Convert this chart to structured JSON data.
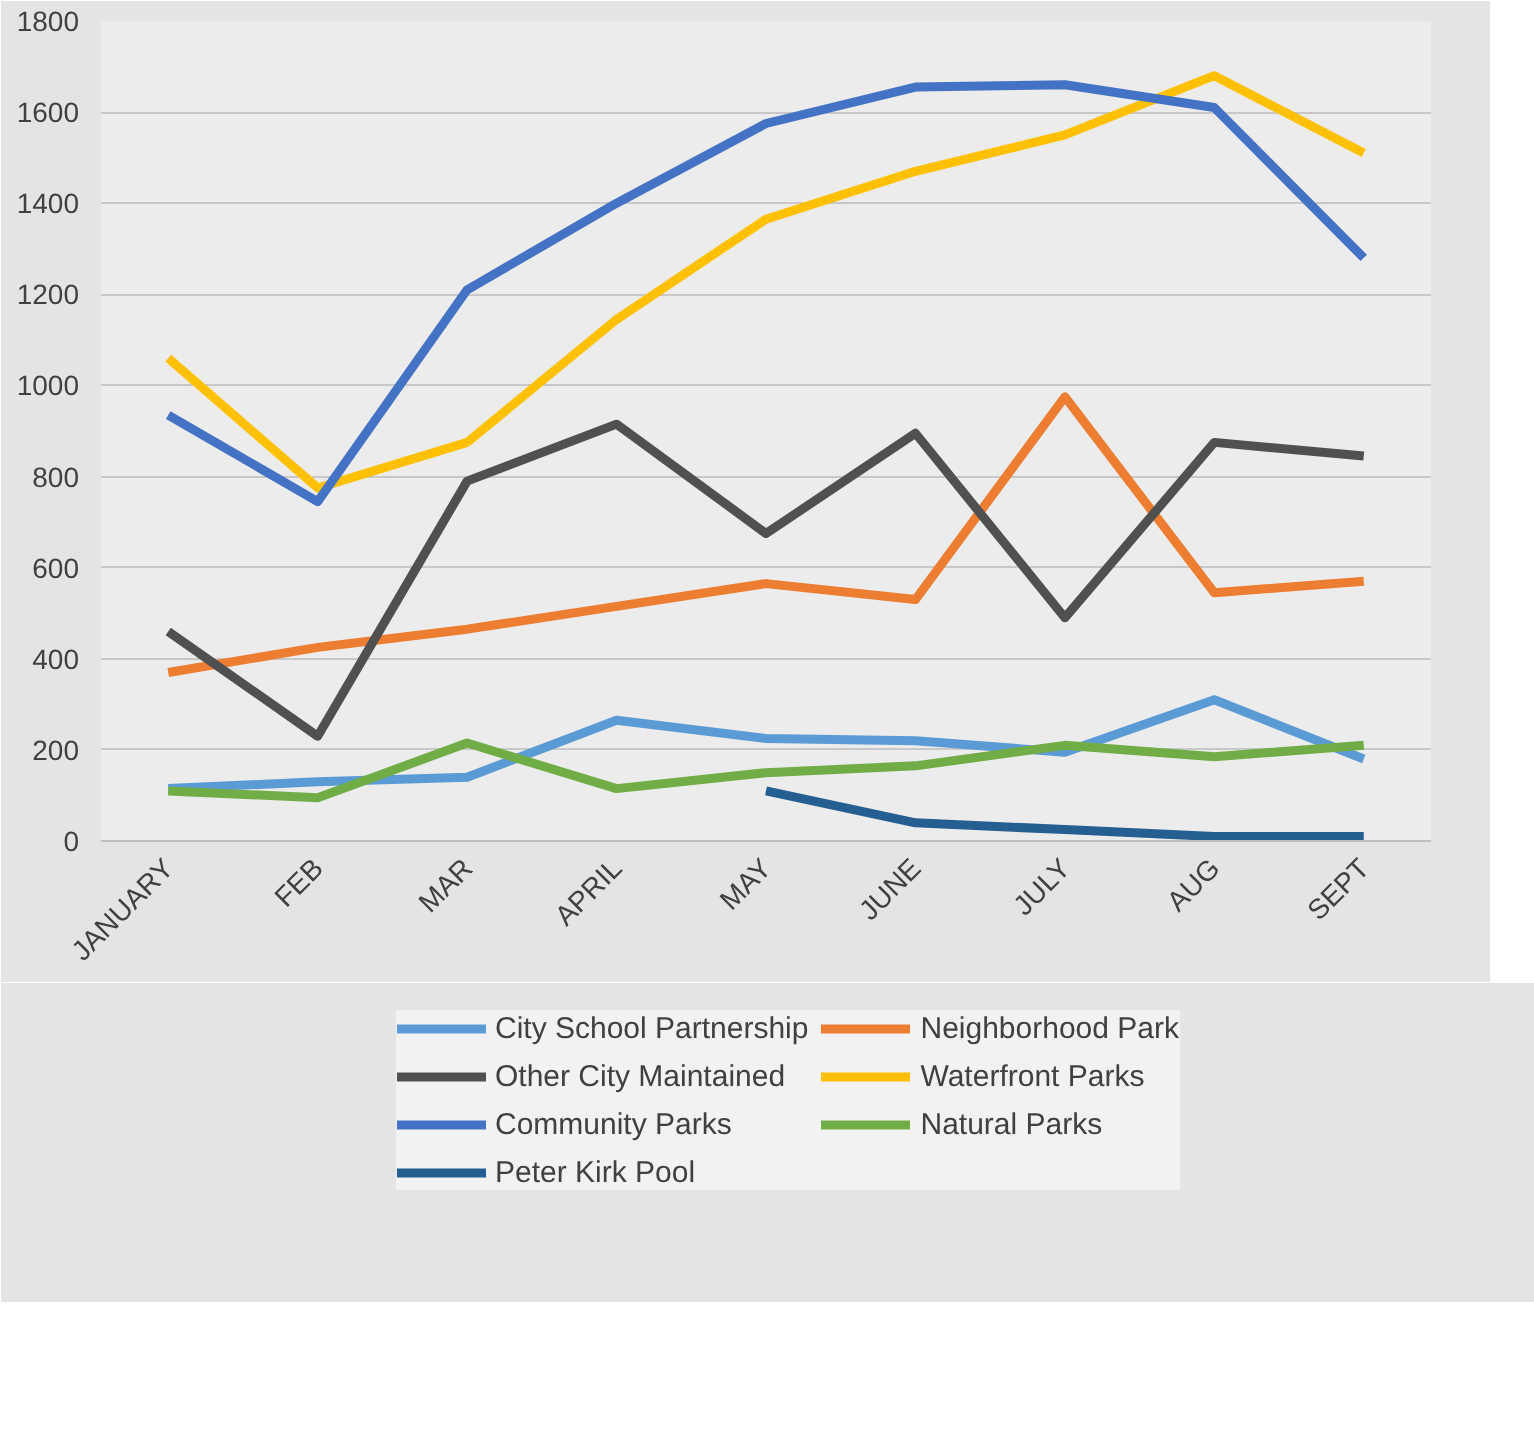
{
  "chart_data": {
    "type": "line",
    "categories": [
      "JANUARY",
      "FEB",
      "MAR",
      "APRIL",
      "MAY",
      "JUNE",
      "JULY",
      "AUG",
      "SEPT"
    ],
    "ylim": [
      0,
      1800
    ],
    "yticks": [
      0,
      200,
      400,
      600,
      800,
      1000,
      1200,
      1400,
      1600,
      1800
    ],
    "grid": "y",
    "legend": "bottom",
    "marker": "none",
    "line_style": "solid",
    "series": [
      {
        "name": "City School Partnership",
        "color": "#5b9bd5",
        "values": [
          115,
          130,
          140,
          265,
          225,
          220,
          195,
          310,
          180
        ]
      },
      {
        "name": "Neighborhood Park",
        "color": "#ed7d31",
        "values": [
          370,
          425,
          465,
          515,
          565,
          530,
          975,
          545,
          570
        ]
      },
      {
        "name": "Other City Maintained",
        "color": "#505050",
        "values": [
          460,
          230,
          790,
          915,
          675,
          895,
          490,
          875,
          845
        ]
      },
      {
        "name": "Waterfront Parks",
        "color": "#ffc000",
        "values": [
          1060,
          775,
          875,
          1145,
          1365,
          1470,
          1550,
          1680,
          1510
        ]
      },
      {
        "name": "Community Parks",
        "color": "#4472c4",
        "values": [
          935,
          745,
          1210,
          1400,
          1575,
          1655,
          1660,
          1610,
          1280
        ]
      },
      {
        "name": "Natural Parks",
        "color": "#70ad47",
        "values": [
          110,
          95,
          215,
          115,
          150,
          165,
          210,
          185,
          210
        ]
      },
      {
        "name": "Peter Kirk Pool",
        "color": "#255e91",
        "values": [
          null,
          null,
          null,
          null,
          110,
          40,
          25,
          10,
          10
        ]
      }
    ]
  }
}
